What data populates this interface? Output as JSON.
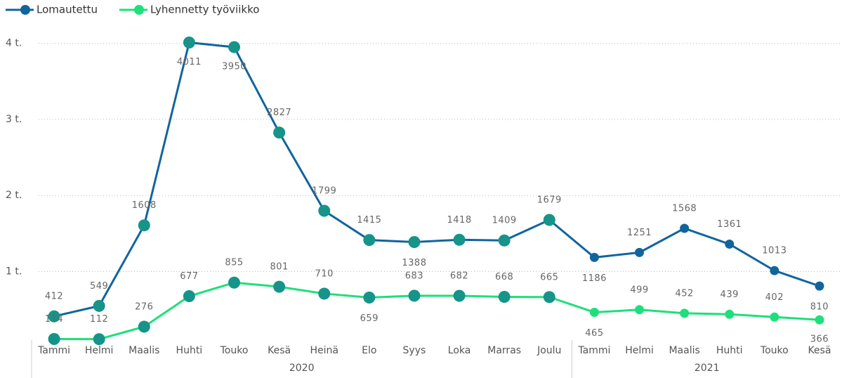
{
  "chart_data": {
    "type": "line",
    "categories": [
      "Tammi",
      "Helmi",
      "Maalis",
      "Huhti",
      "Touko",
      "Kesä",
      "Heinä",
      "Elo",
      "Syys",
      "Loka",
      "Marras",
      "Joulu",
      "Tammi",
      "Helmi",
      "Maalis",
      "Huhti",
      "Touko",
      "Kesä"
    ],
    "x_groups": [
      {
        "label": "2020",
        "count": 12
      },
      {
        "label": "2021",
        "count": 6
      }
    ],
    "series": [
      {
        "name": "Lomautettu",
        "color": "#11659e",
        "values": [
          412,
          549,
          1608,
          4011,
          3950,
          2827,
          1799,
          1415,
          1388,
          1418,
          1409,
          1679,
          1186,
          1251,
          1568,
          1361,
          1013,
          810
        ]
      },
      {
        "name": "Lyhennetty työviikko",
        "color": "#1de07a",
        "values": [
          114,
          112,
          276,
          677,
          855,
          801,
          710,
          659,
          683,
          682,
          668,
          665,
          465,
          499,
          452,
          439,
          402,
          366
        ]
      }
    ],
    "highlight_color": "#16948a",
    "ylim": [
      100,
      4200
    ],
    "yticks": [
      {
        "value": 1000,
        "label": "1 t."
      },
      {
        "value": 2000,
        "label": "2 t."
      },
      {
        "value": 3000,
        "label": "3 t."
      },
      {
        "value": 4000,
        "label": "4 t."
      }
    ],
    "grid": true
  }
}
